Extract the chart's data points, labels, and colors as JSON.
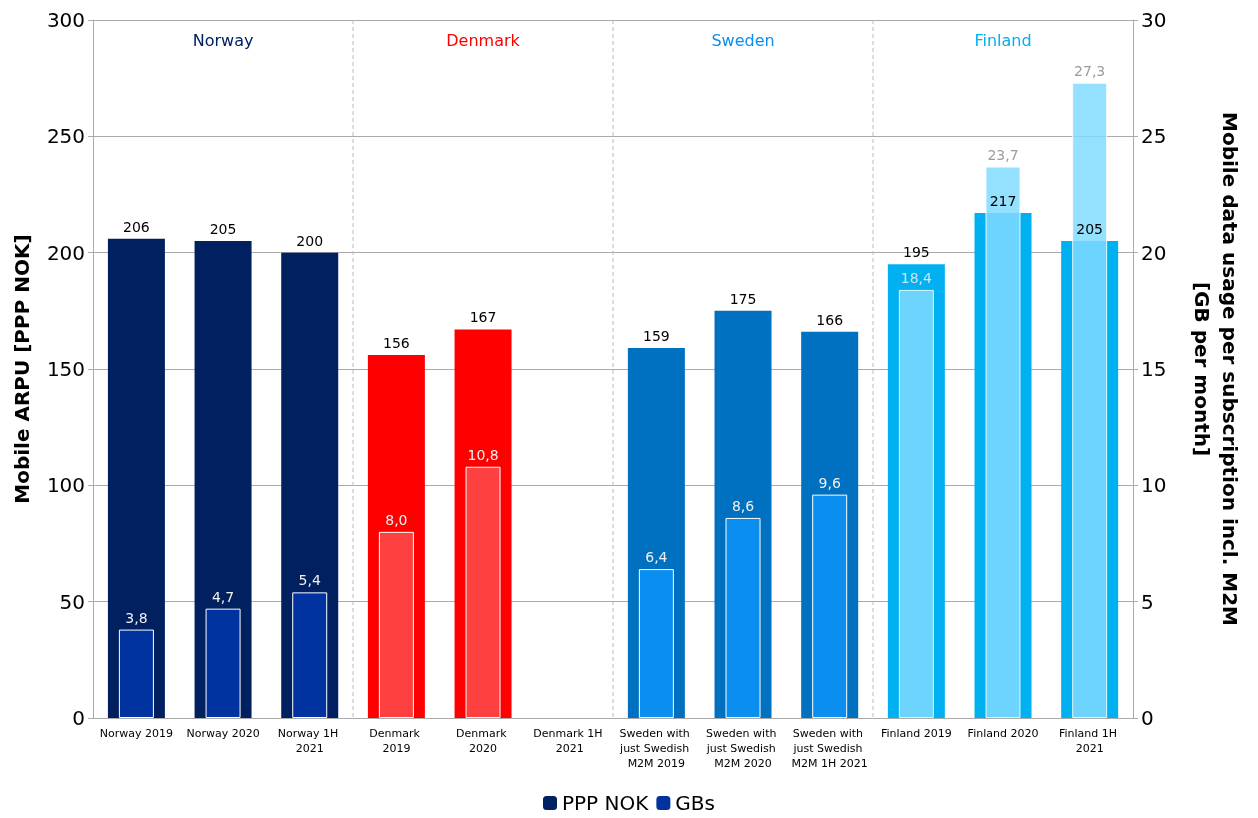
{
  "chart_data": {
    "type": "bar",
    "ylabel": "Mobile ARPU [PPP NOK]",
    "y2label": "Mobile data usage per subscription incl. M2M\n[GB per month]",
    "categories": [
      "Norway 2019",
      "Norway 2020",
      "Norway 1H 2021",
      "Denmark 2019",
      "Denmark 2020",
      "Denmark 1H 2021",
      "Sweden with just Swedish M2M 2019",
      "Sweden with just Swedish M2M 2020",
      "Sweden with just Swedish M2M 1H 2021",
      "Finland 2019",
      "Finland 2020",
      "Finland 1H 2021"
    ],
    "series": [
      {
        "name": "PPP NOK",
        "color": "#002060",
        "values": [
          206,
          205,
          200,
          156,
          167,
          null,
          159,
          175,
          166,
          195,
          217,
          205
        ],
        "value_labels": [
          "206",
          "205",
          "200",
          "156",
          "167",
          null,
          "159",
          "175",
          "166",
          "195",
          "217",
          "205"
        ],
        "colors": [
          "#002060",
          "#002060",
          "#002060",
          "#ff0000",
          "#ff0000",
          "#ff0000",
          "#0070c0",
          "#0070c0",
          "#0070c0",
          "#00b0f0",
          "#00b0f0",
          "#00b0f0"
        ]
      },
      {
        "name": "GBs",
        "color": "#0033a0",
        "axis": "y2",
        "values": [
          3.8,
          4.7,
          5.4,
          8.0,
          10.8,
          null,
          6.4,
          8.6,
          9.6,
          18.4,
          23.7,
          27.3
        ],
        "value_labels": [
          "3,8",
          "4,7",
          "5,4",
          "8,0",
          "10,8",
          null,
          "6,4",
          "8,6",
          "9,6",
          "18,4",
          "23,7",
          "27,3"
        ],
        "colors": [
          "#0033a0",
          "#0033a0",
          "#0033a0",
          "#ff4040",
          "#ff4040",
          "#ff4040",
          "#0a8ef0",
          "#0a8ef0",
          "#0a8ef0",
          "#80dcff",
          "#80dcff",
          "#80dcff"
        ]
      }
    ],
    "ylim": [
      0,
      300
    ],
    "yticks": [
      0,
      50,
      100,
      150,
      200,
      250,
      300
    ],
    "y2lim": [
      0,
      30
    ],
    "y2ticks": [
      0,
      5,
      10,
      15,
      20,
      25,
      30
    ],
    "grid": "y",
    "legend": "bottom",
    "annotations": [
      "Norway",
      "Denmark",
      "Sweden",
      "Finland"
    ]
  }
}
